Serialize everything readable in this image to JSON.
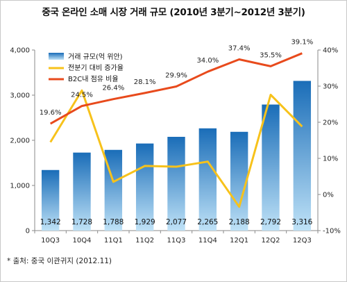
{
  "page": {
    "title": "중국 온라인 소매 시장 거래 규모 (2010년 3분기~2012년 3분기)",
    "source": "* 출처: 중국 이관귀지 (2012.11)"
  },
  "colors": {
    "bar_light": "#bfe2f7",
    "bar_dark": "#1a6db8",
    "growth_line": "#f7c21b",
    "b2c_line": "#e84a1c"
  },
  "chart_data": {
    "type": "bar",
    "categories": [
      "10Q3",
      "10Q4",
      "11Q1",
      "11Q2",
      "11Q3",
      "11Q4",
      "12Q1",
      "12Q2",
      "12Q3"
    ],
    "series": [
      {
        "name": "거래 규모(억 위안)",
        "type": "bar",
        "axis": "left",
        "values": [
          1342,
          1728,
          1788,
          1929,
          2077,
          2265,
          2188,
          2792,
          3316
        ],
        "labels": [
          "1,342",
          "1,728",
          "1,788",
          "1,929",
          "2,077",
          "2,265",
          "2,188",
          "2,792",
          "3,316"
        ]
      },
      {
        "name": "전분기 대비 증가율",
        "type": "line",
        "axis": "right",
        "values": [
          14.5,
          28.8,
          3.5,
          7.9,
          7.7,
          9.1,
          -3.4,
          27.6,
          18.8
        ]
      },
      {
        "name": "B2C내 점유 비율",
        "type": "line",
        "axis": "right",
        "values": [
          19.6,
          24.5,
          26.4,
          28.1,
          29.9,
          34.0,
          37.4,
          35.5,
          39.1
        ],
        "labels": [
          "19.6%",
          "24.5%",
          "26.4%",
          "28.1%",
          "29.9%",
          "34.0%",
          "37.4%",
          "35.5%",
          "39.1%"
        ]
      }
    ],
    "left_axis": {
      "ylim": [
        0,
        4000
      ],
      "ticks": [
        0,
        1000,
        2000,
        3000,
        4000
      ],
      "tick_labels": [
        "0",
        "1,000",
        "2,000",
        "3,000",
        "4,000"
      ]
    },
    "right_axis": {
      "ylim": [
        -10,
        40
      ],
      "ticks": [
        -10,
        0,
        10,
        20,
        30,
        40
      ],
      "tick_labels": [
        "-10%",
        "0%",
        "10%",
        "20%",
        "30%",
        "40%"
      ]
    },
    "legend": "top-left",
    "grid": false
  }
}
